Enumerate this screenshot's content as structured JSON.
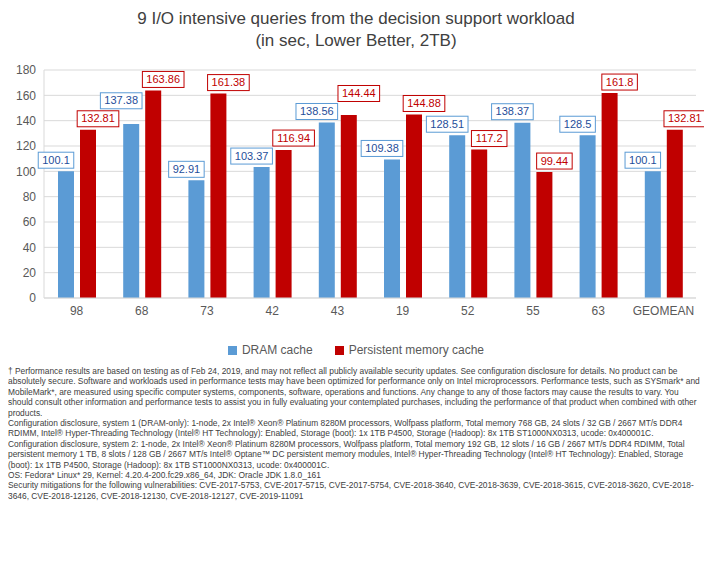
{
  "chart_data": {
    "type": "bar",
    "title": "9 I/O intensive queries from the decision support workload",
    "subtitle": "(in sec, Lower Better, 2TB)",
    "categories": [
      "98",
      "68",
      "73",
      "42",
      "43",
      "19",
      "52",
      "55",
      "63",
      "GEOMEAN"
    ],
    "series": [
      {
        "name": "DRAM cache",
        "color": "#5b9bd5",
        "values": [
          100.1,
          137.38,
          92.91,
          103.37,
          138.56,
          109.38,
          128.51,
          138.37,
          128.5,
          100.1
        ]
      },
      {
        "name": "Persistent memory cache",
        "color": "#c00000",
        "values": [
          132.81,
          163.86,
          161.38,
          116.94,
          144.44,
          144.88,
          117.2,
          99.44,
          161.8,
          132.81
        ]
      }
    ],
    "ylim": [
      0,
      180
    ],
    "yticks": [
      0,
      20,
      40,
      60,
      80,
      100,
      120,
      140,
      160,
      180
    ],
    "grid": true,
    "legend": "bottom",
    "data_labels": true,
    "annotations": [
      "† Performance results are based on testing as of Feb 24, 2019, and may not reflect all publicly available security updates. See configuration disclosure for details. No product can be absolutely secure. Software and workloads used in performance tests may have been optimized for performance only on Intel microprocessors. Performance tests, such as SYSmark* and MobileMark*, are measured using specific computer systems, components, software, operations and functions. Any change to any of those factors may cause the results to vary. You should consult other information and performance tests to assist you in fully evaluating your contemplated purchases, including the performance of that product when combined with other products.",
      "Configuration disclosure, system 1 (DRAM-only): 1-node, 2x Intel® Xeon® Platinum 8280M processors, Wolfpass platform, Total memory 768 GB, 24 slots / 32 GB / 2667 MT/s DDR4 RDIMM, Intel® Hyper-Threading Technology (Intel® HT Technology): Enabled, Storage (boot): 1x 1TB P4500, Storage (Hadoop): 8x 1TB ST1000NX0313, ucode: 0x400001C.",
      "Configuration disclosure, system 2: 1-node, 2x Intel® Xeon® Platinum 8280M processors, Wolfpass platform, Total memory 192 GB, 12 slots / 16 GB / 2667 MT/s DDR4 RDIMM, Total persistent memory 1 TB, 8 slots / 128 GB / 2667 MT/s Intel® Optane™ DC persistent memory modules, Intel® Hyper-Threading Technology (Intel® HT Technology): Enabled, Storage (boot): 1x 1TB P4500, Storage (Hadoop): 8x 1TB ST1000NX0313, ucode: 0x400001C.",
      "OS: Fedora* Linux* 29, Kernel: 4.20.4-200.fc29.x86_64, JDK: Oracle JDK 1.8.0_161",
      "Security mitigations for the following vulnerabilities: CVE-2017-5753, CVE-2017-5715, CVE-2017-5754, CVE-2018-3640, CVE-2018-3639, CVE-2018-3615, CVE-2018-3620, CVE-2018-3646, CVE-2018-12126, CVE-2018-12130, CVE-2018-12127, CVE-2019-11091"
    ]
  }
}
